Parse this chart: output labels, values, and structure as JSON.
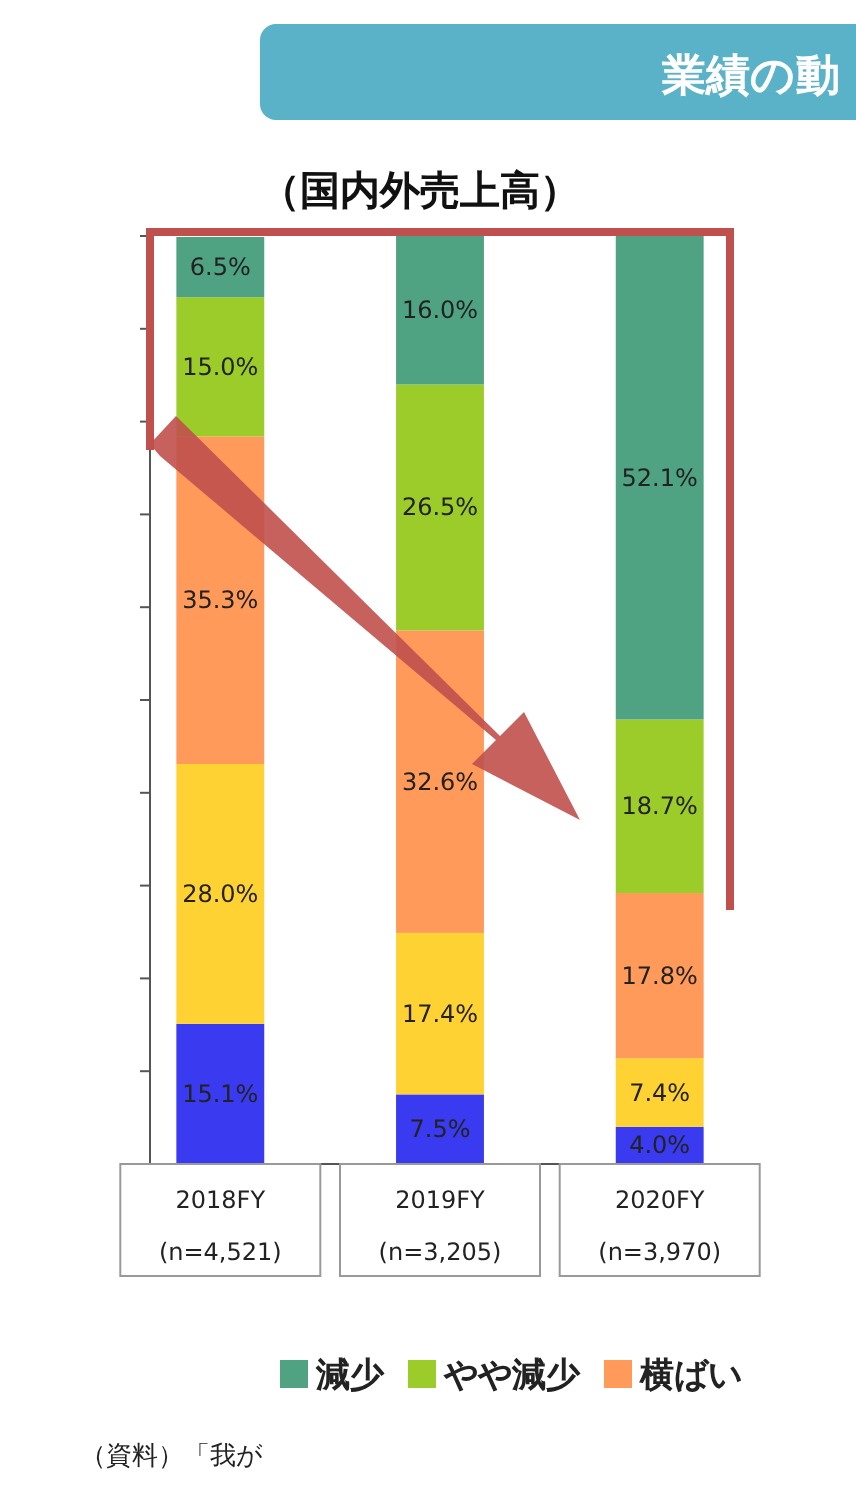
{
  "chart_data": {
    "type": "bar",
    "title": "業績の動",
    "subtitle": "（国内外売上高）",
    "stacked": true,
    "categories": [
      "2018FY\n(n=4,521)",
      "2019FY\n(n=3,205)",
      "2020FY\n(n=3,970)"
    ],
    "series": [
      {
        "color": "#3a3af0",
        "values": [
          15.1,
          7.5,
          4.0
        ],
        "value_labels": [
          "15.1%",
          "7.5%",
          "4.0%"
        ]
      },
      {
        "color": "#ffd233",
        "values": [
          28.0,
          17.4,
          7.4
        ],
        "value_labels": [
          "28.0%",
          "17.4%",
          "7.4%"
        ]
      },
      {
        "name": "横ばい",
        "color": "#ff9a5a",
        "values": [
          35.3,
          32.6,
          17.8
        ],
        "value_labels": [
          "35.3%",
          "32.6%",
          "17.8%"
        ]
      },
      {
        "name": "やや減少",
        "color": "#9ccc2a",
        "values": [
          15.0,
          26.5,
          18.7
        ],
        "value_labels": [
          "15.0%",
          "26.5%",
          "18.7%"
        ]
      },
      {
        "name": "減少",
        "color": "#4fa382",
        "values": [
          6.5,
          16.0,
          52.1
        ],
        "value_labels": [
          "6.5%",
          "16.0%",
          "52.1%"
        ]
      }
    ],
    "ylim": [
      0,
      100
    ],
    "yticks": [
      {
        "value": 0,
        "label": null
      },
      {
        "value": 10,
        "label": null
      },
      {
        "value": 20,
        "label": null
      },
      {
        "value": 30,
        "label": null
      },
      {
        "value": 40,
        "label": null
      },
      {
        "value": 50,
        "label": null
      },
      {
        "value": 60,
        "label": null
      },
      {
        "value": 70,
        "label": null
      },
      {
        "value": 80,
        "label": null
      },
      {
        "value": 90,
        "label": null
      },
      {
        "value": 100,
        "label": null
      }
    ],
    "tick_labels": "x",
    "legend": "bottom",
    "annotations": [
      "（資料）「我が"
    ]
  }
}
